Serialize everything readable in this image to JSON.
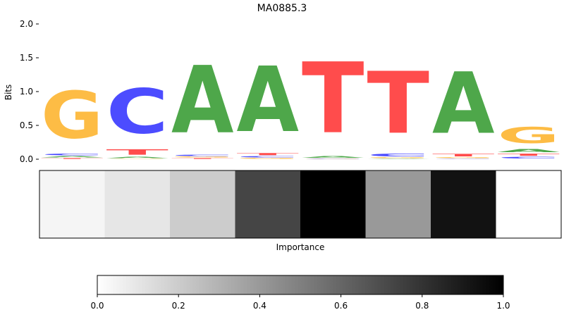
{
  "chart_data": [
    {
      "type": "sequence-logo",
      "title": "MA0885.3",
      "ylabel": "Bits",
      "ylim": [
        0,
        2.0
      ],
      "yticks": [
        "0.0",
        "0.5",
        "1.0",
        "1.5",
        "2.0"
      ],
      "colors": {
        "A": "#4ea74a",
        "C": "#4c4cff",
        "G": "#fdbc45",
        "T": "#ff4c4c"
      },
      "positions": [
        {
          "index": 1,
          "stack": [
            {
              "base": "T",
              "bits": 0.02
            },
            {
              "base": "A",
              "bits": 0.03
            },
            {
              "base": "C",
              "bits": 0.04
            },
            {
              "base": "G",
              "bits": 1.12
            }
          ]
        },
        {
          "index": 2,
          "stack": [
            {
              "base": "G",
              "bits": 0.01
            },
            {
              "base": "A",
              "bits": 0.03
            },
            {
              "base": "T",
              "bits": 0.13
            },
            {
              "base": "C",
              "bits": 1.06
            }
          ]
        },
        {
          "index": 3,
          "stack": [
            {
              "base": "T",
              "bits": 0.02
            },
            {
              "base": "G",
              "bits": 0.02
            },
            {
              "base": "C",
              "bits": 0.03
            },
            {
              "base": "A",
              "bits": 1.6
            }
          ]
        },
        {
          "index": 4,
          "stack": [
            {
              "base": "G",
              "bits": 0.02
            },
            {
              "base": "C",
              "bits": 0.03
            },
            {
              "base": "T",
              "bits": 0.05
            },
            {
              "base": "A",
              "bits": 1.55
            }
          ]
        },
        {
          "index": 5,
          "stack": [
            {
              "base": "C",
              "bits": 0.005
            },
            {
              "base": "G",
              "bits": 0.01
            },
            {
              "base": "A",
              "bits": 0.04
            },
            {
              "base": "T",
              "bits": 1.68
            }
          ]
        },
        {
          "index": 6,
          "stack": [
            {
              "base": "A",
              "bits": 0.01
            },
            {
              "base": "G",
              "bits": 0.02
            },
            {
              "base": "C",
              "bits": 0.06
            },
            {
              "base": "T",
              "bits": 1.47
            }
          ]
        },
        {
          "index": 7,
          "stack": [
            {
              "base": "C",
              "bits": 0.01
            },
            {
              "base": "G",
              "bits": 0.02
            },
            {
              "base": "T",
              "bits": 0.06
            },
            {
              "base": "A",
              "bits": 1.46
            }
          ]
        },
        {
          "index": 8,
          "stack": [
            {
              "base": "C",
              "bits": 0.04
            },
            {
              "base": "T",
              "bits": 0.05
            },
            {
              "base": "A",
              "bits": 0.07
            },
            {
              "base": "G",
              "bits": 0.38
            }
          ]
        }
      ]
    },
    {
      "type": "heatmap",
      "xlabel": "Importance",
      "cmap": "grayscale-white-to-black",
      "values": [
        0.04,
        0.1,
        0.2,
        0.73,
        1.0,
        0.4,
        0.93,
        0.0
      ]
    },
    {
      "type": "colorbar",
      "range": [
        0.0,
        1.0
      ],
      "ticks": [
        "0.0",
        "0.2",
        "0.4",
        "0.6",
        "0.8",
        "1.0"
      ],
      "tick_values": [
        0.0,
        0.2,
        0.4,
        0.6,
        0.8,
        1.0
      ]
    }
  ]
}
